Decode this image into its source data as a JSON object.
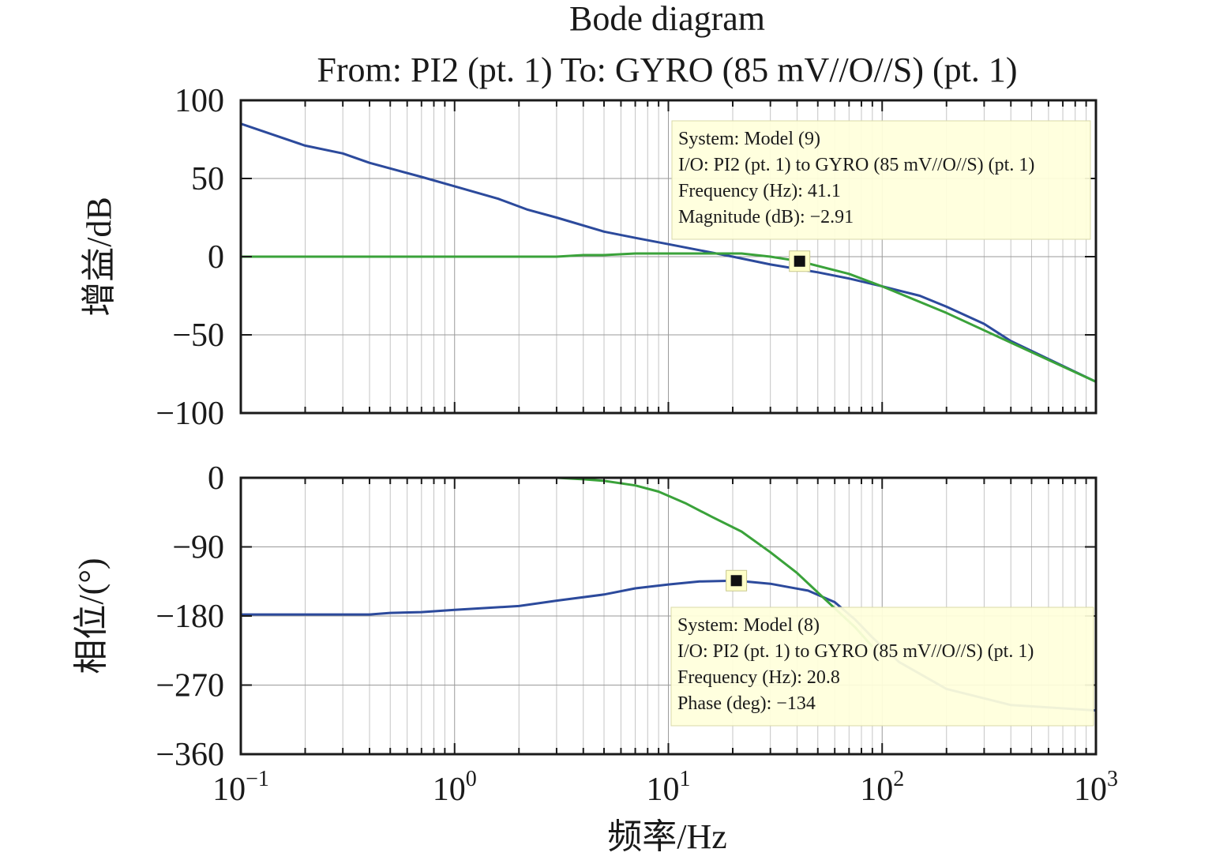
{
  "chart_data": {
    "type": "line",
    "title": "Bode diagram",
    "subtitle": "From: PI2 (pt. 1)  To: GYRO (85 mV//O//S) (pt. 1)",
    "xlabel": "频率/Hz",
    "x_scale": "log",
    "xlim": [
      0.1,
      1000
    ],
    "x_ticks": [
      {
        "value": 0.1,
        "base": "10",
        "exp": "−1"
      },
      {
        "value": 1,
        "base": "10",
        "exp": "0"
      },
      {
        "value": 10,
        "base": "10",
        "exp": "1"
      },
      {
        "value": 100,
        "base": "10",
        "exp": "2"
      },
      {
        "value": 1000,
        "base": "10",
        "exp": "3"
      }
    ],
    "grid": true,
    "colors": {
      "blue": "#2c4a9c",
      "green": "#3aa23a"
    },
    "panels": [
      {
        "ylabel": "增益/dB",
        "ylim": [
          -100,
          100
        ],
        "y_ticks": [
          {
            "value": 100,
            "label": "100"
          },
          {
            "value": 50,
            "label": "50"
          },
          {
            "value": 0,
            "label": "0"
          },
          {
            "value": -50,
            "label": "−50"
          },
          {
            "value": -100,
            "label": "−100"
          }
        ],
        "series": [
          {
            "color": "#2c4a9c",
            "points": [
              [
                0.1,
                85
              ],
              [
                0.2,
                71
              ],
              [
                0.3,
                66
              ],
              [
                0.4,
                60
              ],
              [
                0.7,
                51
              ],
              [
                1,
                45
              ],
              [
                1.6,
                37
              ],
              [
                2.2,
                30
              ],
              [
                3,
                25
              ],
              [
                5,
                16
              ],
              [
                7,
                12
              ],
              [
                10,
                8
              ],
              [
                20,
                0
              ],
              [
                30,
                -5
              ],
              [
                50,
                -10
              ],
              [
                70,
                -14
              ],
              [
                100,
                -19
              ],
              [
                150,
                -25
              ],
              [
                200,
                -32
              ],
              [
                300,
                -43
              ],
              [
                400,
                -54
              ],
              [
                1000,
                -80
              ]
            ]
          },
          {
            "color": "#3aa23a",
            "points": [
              [
                0.1,
                0
              ],
              [
                1,
                0
              ],
              [
                3,
                0
              ],
              [
                4,
                1
              ],
              [
                5,
                1
              ],
              [
                7,
                2
              ],
              [
                10,
                2
              ],
              [
                22,
                2
              ],
              [
                30,
                0
              ],
              [
                41.1,
                -2.91
              ],
              [
                70,
                -11
              ],
              [
                100,
                -19
              ],
              [
                200,
                -36
              ],
              [
                400,
                -55
              ],
              [
                1000,
                -80
              ]
            ]
          }
        ],
        "marker": {
          "x": 41.1,
          "y": -2.91
        },
        "datatip": {
          "lines": [
            "System: Model (9)",
            "I/O: PI2 (pt. 1) to GYRO (85 mV//O//S) (pt. 1)",
            "Frequency (Hz): 41.1",
            "Magnitude (dB): −2.91"
          ]
        }
      },
      {
        "ylabel": "相位/(°)",
        "ylim": [
          -360,
          0
        ],
        "y_ticks": [
          {
            "value": 0,
            "label": "0"
          },
          {
            "value": -90,
            "label": "−90"
          },
          {
            "value": -180,
            "label": "−180"
          },
          {
            "value": -270,
            "label": "−270"
          },
          {
            "value": -360,
            "label": "−360"
          }
        ],
        "series": [
          {
            "color": "#2c4a9c",
            "points": [
              [
                0.1,
                -178
              ],
              [
                0.2,
                -178
              ],
              [
                0.4,
                -178
              ],
              [
                0.5,
                -176
              ],
              [
                0.7,
                -175
              ],
              [
                1,
                -172
              ],
              [
                2,
                -167
              ],
              [
                3,
                -160
              ],
              [
                5,
                -152
              ],
              [
                7,
                -144
              ],
              [
                10,
                -139
              ],
              [
                14,
                -135
              ],
              [
                20.8,
                -134
              ],
              [
                30,
                -138
              ],
              [
                45,
                -147
              ],
              [
                60,
                -162
              ],
              [
                75,
                -185
              ],
              [
                90,
                -208
              ],
              [
                120,
                -240
              ],
              [
                200,
                -275
              ],
              [
                400,
                -296
              ],
              [
                1000,
                -303
              ]
            ]
          },
          {
            "color": "#3aa23a",
            "points": [
              [
                0.1,
                0
              ],
              [
                1,
                0
              ],
              [
                3,
                0
              ],
              [
                4,
                -2
              ],
              [
                5,
                -4
              ],
              [
                7,
                -10
              ],
              [
                9,
                -18
              ],
              [
                12,
                -33
              ],
              [
                16,
                -51
              ],
              [
                22,
                -70
              ],
              [
                30,
                -97
              ],
              [
                40,
                -124
              ],
              [
                60,
                -170
              ],
              [
                75,
                -195
              ],
              [
                90,
                -220
              ]
            ]
          }
        ],
        "marker": {
          "x": 20.8,
          "y": -134
        },
        "datatip": {
          "lines": [
            "System: Model (8)",
            "I/O: PI2 (pt. 1) to GYRO (85 mV//O//S) (pt. 1)",
            "Frequency (Hz): 20.8",
            "Phase (deg): −134"
          ]
        }
      }
    ]
  }
}
